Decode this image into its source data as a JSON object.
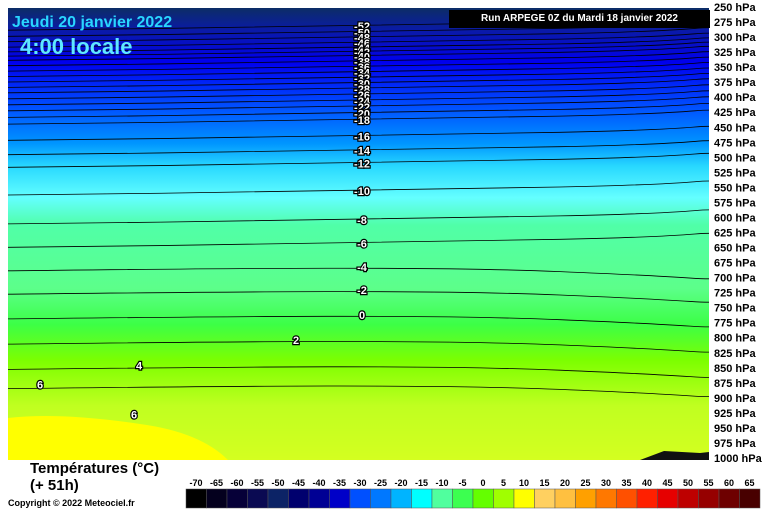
{
  "header": {
    "date": "Jeudi 20 janvier 2022",
    "local_time": "4:00 locale",
    "run_label": "Run ARPEGE 0Z du Mardi 18 janvier 2022"
  },
  "footer": {
    "title": "Températures (°C)",
    "forecast_step": "(+ 51h)",
    "copyright": "Copyright © 2022 Meteociel.fr"
  },
  "chart_data": {
    "type": "heatmap",
    "title": "Températures (°C)",
    "subtitle": "(+ 51h)",
    "y_axis": {
      "unit": "hPa",
      "ticks": [
        250,
        275,
        300,
        325,
        350,
        375,
        400,
        425,
        450,
        475,
        500,
        525,
        550,
        575,
        600,
        625,
        650,
        675,
        700,
        725,
        750,
        775,
        800,
        825,
        850,
        875,
        900,
        925,
        950,
        975,
        1000
      ],
      "tick_labels": [
        "250 hPa",
        "275 hPa",
        "300 hPa",
        "325 hPa",
        "350 hPa",
        "375 hPa",
        "400 hPa",
        "425 hPa",
        "450 hPa",
        "475 hPa",
        "500 hPa",
        "525 hPa",
        "550 hPa",
        "575 hPa",
        "600 hPa",
        "625 hPa",
        "650 hPa",
        "675 hPa",
        "700 hPa",
        "725 hPa",
        "750 hPa",
        "775 hPa",
        "800 hPa",
        "825 hPa",
        "850 hPa",
        "875 hPa",
        "900 hPa",
        "925 hPa",
        "950 hPa",
        "975 hPa",
        "1000 hPa"
      ],
      "range": [
        250,
        1000
      ],
      "inverted": true
    },
    "isotherm_labels": [
      {
        "value": "-52",
        "p": 282
      },
      {
        "value": "-50",
        "p": 292
      },
      {
        "value": "-48",
        "p": 301
      },
      {
        "value": "-46",
        "p": 310
      },
      {
        "value": "-44",
        "p": 318
      },
      {
        "value": "-42",
        "p": 325
      },
      {
        "value": "-40",
        "p": 332
      },
      {
        "value": "-38",
        "p": 341
      },
      {
        "value": "-36",
        "p": 350
      },
      {
        "value": "-34",
        "p": 359
      },
      {
        "value": "-32",
        "p": 368
      },
      {
        "value": "-30",
        "p": 377
      },
      {
        "value": "-28",
        "p": 386
      },
      {
        "value": "-26",
        "p": 396
      },
      {
        "value": "-24",
        "p": 406
      },
      {
        "value": "-22",
        "p": 416
      },
      {
        "value": "-20",
        "p": 427
      },
      {
        "value": "-18",
        "p": 438
      },
      {
        "value": "-16",
        "p": 465
      },
      {
        "value": "-14",
        "p": 489
      },
      {
        "value": "-12",
        "p": 510
      },
      {
        "value": "-10",
        "p": 556
      },
      {
        "value": "-8",
        "p": 604
      },
      {
        "value": "-6",
        "p": 643
      },
      {
        "value": "-4",
        "p": 682
      },
      {
        "value": "-2",
        "p": 721
      },
      {
        "value": "0",
        "p": 762
      },
      {
        "value": "2",
        "p": 804
      },
      {
        "value": "4",
        "p": 846
      },
      {
        "value": "6",
        "p": 878
      },
      {
        "value": "6",
        "p": 928
      }
    ],
    "colorbar": {
      "ticks": [
        "-70",
        "-65",
        "-60",
        "-55",
        "-50",
        "-45",
        "-40",
        "-35",
        "-30",
        "-25",
        "-20",
        "-15",
        "-10",
        "-5",
        "0",
        "5",
        "10",
        "15",
        "20",
        "25",
        "30",
        "35",
        "40",
        "45",
        "50",
        "55",
        "60",
        "65"
      ],
      "colors": [
        "#000000",
        "#04001e",
        "#060038",
        "#0a0a52",
        "#0c2366",
        "#00006e",
        "#000094",
        "#0000c8",
        "#0050ff",
        "#0078ff",
        "#00b4ff",
        "#00ffff",
        "#50ff9e",
        "#3cff50",
        "#64ff00",
        "#a0ff00",
        "#ffff00",
        "#ffd060",
        "#ffc040",
        "#ffa000",
        "#ff7800",
        "#ff5000",
        "#ff2000",
        "#e60000",
        "#be0000",
        "#960000",
        "#6e0000",
        "#480000"
      ]
    },
    "grid": false
  }
}
